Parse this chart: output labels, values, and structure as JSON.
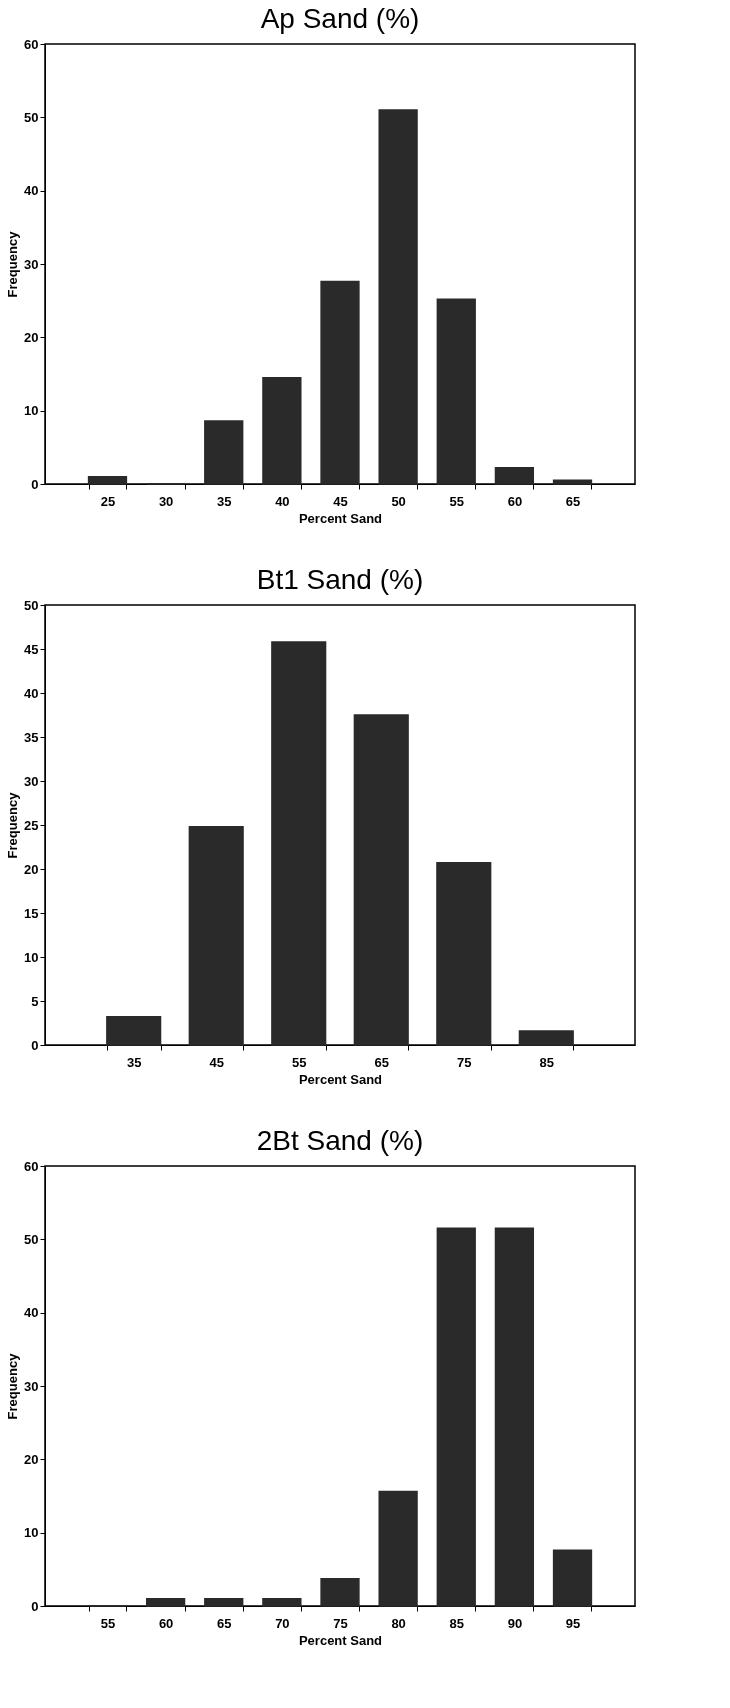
{
  "chart_data": [
    {
      "type": "bar",
      "title": "Ap Sand (%)",
      "xlabel": "Percent Sand",
      "ylabel": "Frequency",
      "categories": [
        "25",
        "30",
        "35",
        "40",
        "45",
        "50",
        "55",
        "60",
        "65"
      ],
      "values": [
        1,
        0,
        8.6,
        14.5,
        27.6,
        51,
        25.2,
        2.2,
        0.5
      ],
      "color": "#2a2a2a",
      "ylim": [
        0,
        60
      ],
      "yticks": [
        0,
        10,
        20,
        30,
        40,
        50,
        60
      ],
      "grid": false
    },
    {
      "type": "bar",
      "title": "Bt1 Sand (%)",
      "xlabel": "Percent Sand",
      "ylabel": "Frequency",
      "categories": [
        "35",
        "45",
        "55",
        "65",
        "75",
        "85"
      ],
      "values": [
        3.2,
        24.8,
        45.8,
        37.5,
        20.7,
        1.6
      ],
      "color": "#2a2a2a",
      "ylim": [
        0,
        50
      ],
      "yticks": [
        0,
        5,
        10,
        15,
        20,
        25,
        30,
        35,
        40,
        45,
        50
      ],
      "grid": false
    },
    {
      "type": "bar",
      "title": "2Bt Sand (%)",
      "xlabel": "Percent Sand",
      "ylabel": "Frequency",
      "categories": [
        "55",
        "60",
        "65",
        "70",
        "75",
        "80",
        "85",
        "90",
        "95"
      ],
      "values": [
        0,
        1,
        1,
        1,
        3.7,
        15.6,
        51.5,
        51.5,
        7.6
      ],
      "color": "#2a2a2a",
      "ylim": [
        0,
        60
      ],
      "yticks": [
        0,
        10,
        20,
        30,
        40,
        50,
        60
      ],
      "grid": false
    }
  ]
}
